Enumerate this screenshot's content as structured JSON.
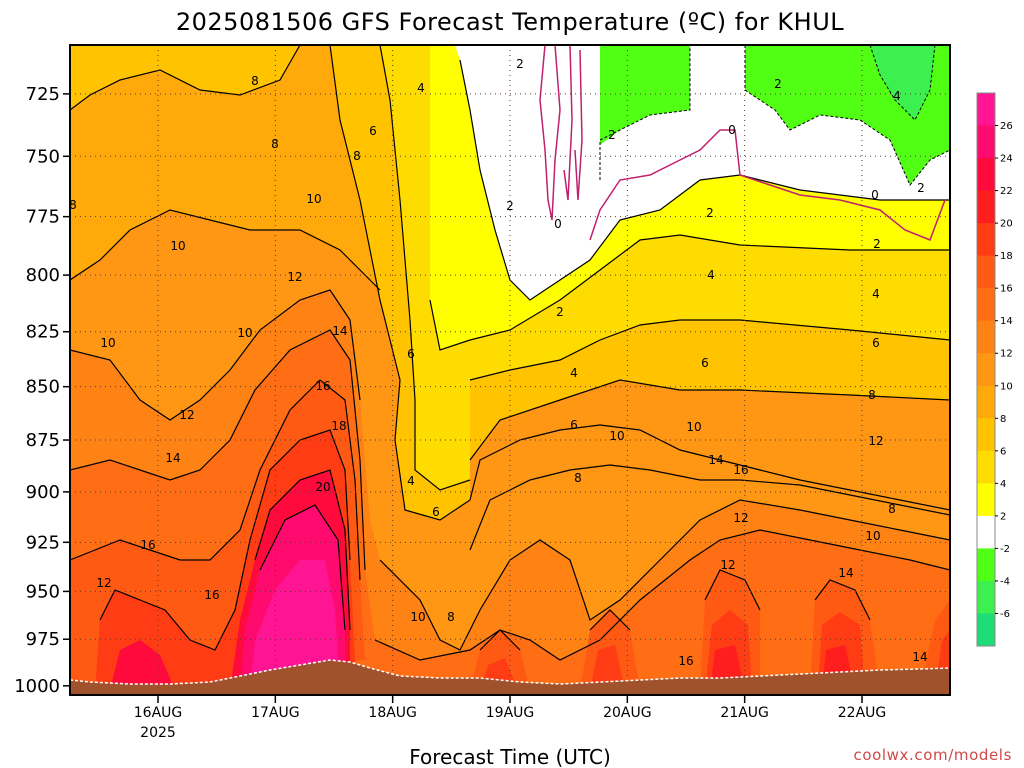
{
  "chart_data": {
    "type": "heatmap",
    "title": "2025081506 GFS Forecast Temperature (ºC) for KHUL",
    "xlabel": "Forecast Time (UTC)",
    "ylabel": "",
    "credit": "coolwx.com/models",
    "y_axis": {
      "ticks": [
        "725",
        "750",
        "775",
        "800",
        "825",
        "850",
        "875",
        "900",
        "925",
        "950",
        "975",
        "1000"
      ],
      "scale": "log-pressure",
      "range_hpa": [
        1005,
        706
      ]
    },
    "x_axis": {
      "ticks": [
        "16AUG",
        "17AUG",
        "18AUG",
        "19AUG",
        "20AUG",
        "21AUG",
        "22AUG"
      ],
      "sublabel": "2025",
      "range_days": [
        15.25,
        22.75
      ]
    },
    "colorbar": {
      "labels": [
        "26",
        "24",
        "22",
        "20",
        "18",
        "16",
        "14",
        "12",
        "10",
        "8",
        "6",
        "4",
        "2",
        "-2",
        "-4",
        "-6"
      ],
      "colors": [
        "#ff1493",
        "#ff0a6e",
        "#ff0a3c",
        "#ff1e1e",
        "#ff3c14",
        "#ff5a14",
        "#ff6e14",
        "#ff8214",
        "#ff9614",
        "#ffaa0a",
        "#ffc300",
        "#ffdc00",
        "#ffff00",
        "#ffffff",
        "#50ff14",
        "#3cf050",
        "#1edc78"
      ]
    },
    "contour_labels": [
      {
        "text": "8"
      },
      {
        "text": "8"
      },
      {
        "text": "8"
      },
      {
        "text": "8"
      },
      {
        "text": "6"
      },
      {
        "text": "4"
      },
      {
        "text": "2"
      },
      {
        "text": "2"
      },
      {
        "text": "0"
      },
      {
        "text": "0"
      },
      {
        "text": "2"
      },
      {
        "text": "4"
      },
      {
        "text": "2"
      },
      {
        "text": "0"
      },
      {
        "text": "2"
      },
      {
        "text": "10"
      },
      {
        "text": "10"
      },
      {
        "text": "10"
      },
      {
        "text": "10"
      },
      {
        "text": "12"
      },
      {
        "text": "12"
      },
      {
        "text": "14"
      },
      {
        "text": "14"
      },
      {
        "text": "16"
      },
      {
        "text": "16"
      },
      {
        "text": "18"
      },
      {
        "text": "20"
      },
      {
        "text": "12"
      },
      {
        "text": "16"
      },
      {
        "text": "6"
      },
      {
        "text": "4"
      },
      {
        "text": "6"
      },
      {
        "text": "10"
      },
      {
        "text": "8"
      },
      {
        "text": "2"
      },
      {
        "text": "4"
      },
      {
        "text": "6"
      },
      {
        "text": "8"
      },
      {
        "text": "10"
      },
      {
        "text": "2"
      },
      {
        "text": "4"
      },
      {
        "text": "6"
      },
      {
        "text": "8"
      },
      {
        "text": "10"
      },
      {
        "text": "12"
      },
      {
        "text": "14"
      },
      {
        "text": "16"
      },
      {
        "text": "12"
      },
      {
        "text": "2"
      },
      {
        "text": "4"
      },
      {
        "text": "6"
      },
      {
        "text": "8"
      },
      {
        "text": "10"
      },
      {
        "text": "12"
      },
      {
        "text": "14"
      },
      {
        "text": "16"
      },
      {
        "text": "14"
      }
    ],
    "surface_color": "#a0522d"
  }
}
